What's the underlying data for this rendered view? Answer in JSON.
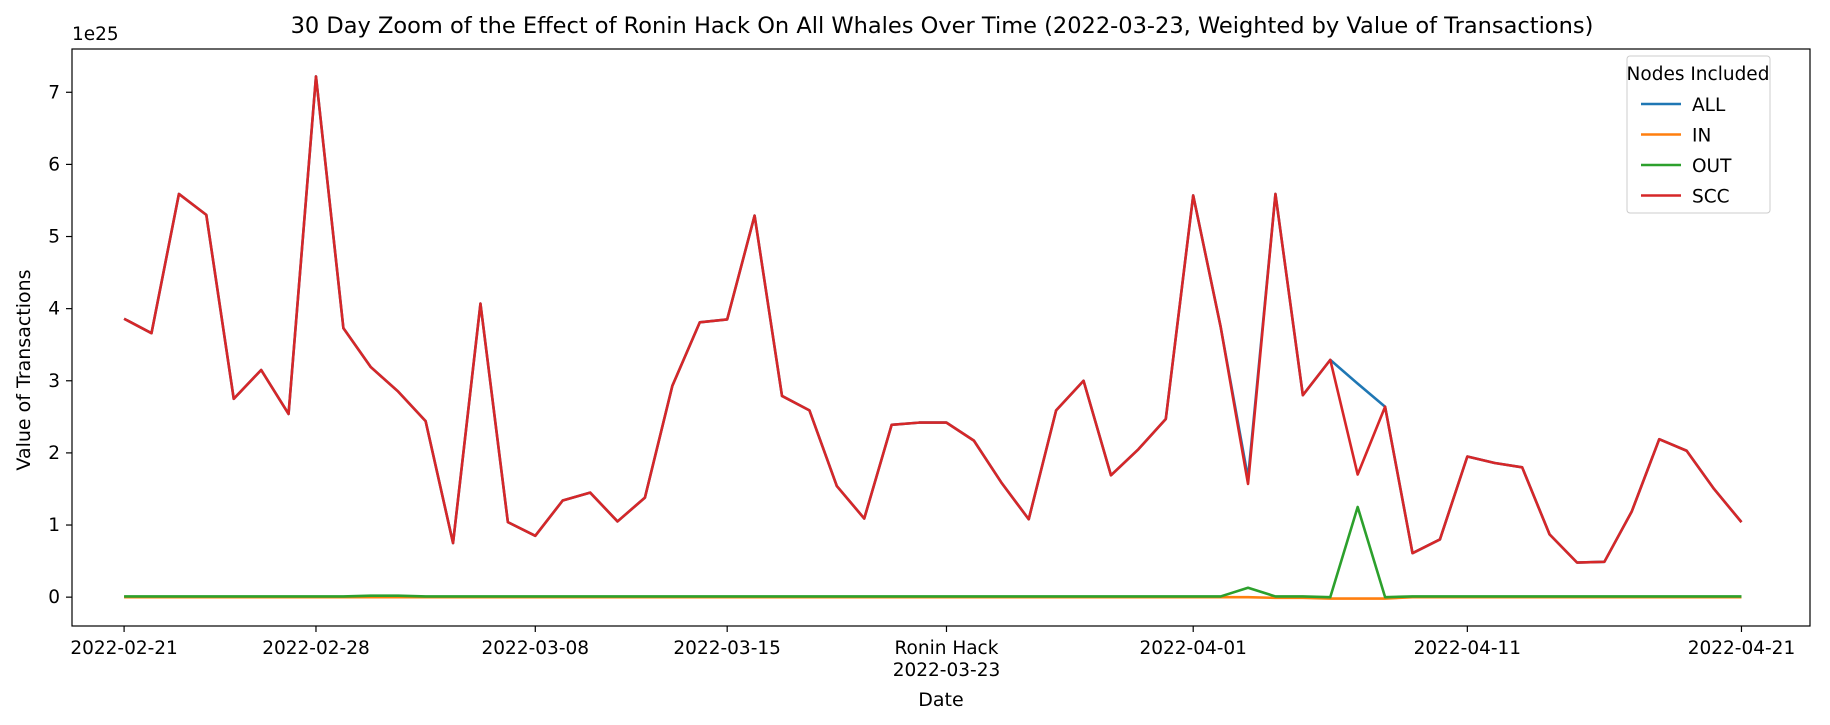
{
  "chart_data": {
    "type": "line",
    "title": "30 Day Zoom of the Effect of Ronin Hack On All Whales Over Time (2022-03-23, Weighted by Value of Transactions)",
    "xlabel": "Date",
    "ylabel": "Value of Transactions",
    "y_offset_label": "1e25",
    "ylim": [
      -0.4,
      7.6
    ],
    "y_ticks": [
      0,
      1,
      2,
      3,
      4,
      5,
      6,
      7
    ],
    "xlim": [
      "2022-02-19",
      "2022-04-24"
    ],
    "x_ticks": [
      {
        "date": "2022-02-21",
        "label": "2022-02-21"
      },
      {
        "date": "2022-02-28",
        "label": "2022-02-28"
      },
      {
        "date": "2022-03-08",
        "label": "2022-03-08"
      },
      {
        "date": "2022-03-15",
        "label": "2022-03-15"
      },
      {
        "date": "2022-03-23",
        "label": "Ronin Hack\n2022-03-23"
      },
      {
        "date": "2022-04-01",
        "label": "2022-04-01"
      },
      {
        "date": "2022-04-11",
        "label": "2022-04-11"
      },
      {
        "date": "2022-04-21",
        "label": "2022-04-21"
      }
    ],
    "x": [
      "2022-02-21",
      "2022-02-22",
      "2022-02-23",
      "2022-02-24",
      "2022-02-25",
      "2022-02-26",
      "2022-02-27",
      "2022-02-28",
      "2022-03-01",
      "2022-03-02",
      "2022-03-03",
      "2022-03-04",
      "2022-03-05",
      "2022-03-06",
      "2022-03-07",
      "2022-03-08",
      "2022-03-09",
      "2022-03-10",
      "2022-03-11",
      "2022-03-12",
      "2022-03-13",
      "2022-03-14",
      "2022-03-15",
      "2022-03-16",
      "2022-03-17",
      "2022-03-18",
      "2022-03-19",
      "2022-03-20",
      "2022-03-21",
      "2022-03-22",
      "2022-03-23",
      "2022-03-24",
      "2022-03-25",
      "2022-03-26",
      "2022-03-27",
      "2022-03-28",
      "2022-03-29",
      "2022-03-30",
      "2022-03-31",
      "2022-04-01",
      "2022-04-02",
      "2022-04-03",
      "2022-04-04",
      "2022-04-05",
      "2022-04-06",
      "2022-04-07",
      "2022-04-08",
      "2022-04-09",
      "2022-04-10",
      "2022-04-11",
      "2022-04-12",
      "2022-04-13",
      "2022-04-14",
      "2022-04-15",
      "2022-04-16",
      "2022-04-17",
      "2022-04-18",
      "2022-04-19",
      "2022-04-20",
      "2022-04-21"
    ],
    "series": [
      {
        "name": "ALL",
        "color": "#1f77b4",
        "values": [
          3.86,
          3.66,
          5.59,
          5.3,
          2.75,
          3.15,
          2.54,
          7.22,
          3.73,
          3.19,
          2.85,
          2.44,
          0.75,
          4.07,
          1.04,
          0.85,
          1.34,
          1.45,
          1.05,
          1.38,
          2.93,
          3.81,
          3.85,
          5.29,
          2.79,
          2.59,
          1.54,
          1.09,
          2.39,
          2.42,
          2.42,
          2.17,
          1.59,
          1.08,
          2.59,
          3.0,
          1.69,
          2.05,
          2.47,
          5.57,
          3.75,
          1.65,
          5.59,
          2.8,
          3.29,
          2.96,
          2.64,
          0.61,
          0.8,
          1.95,
          1.86,
          1.8,
          0.87,
          0.48,
          0.49,
          1.19,
          2.19,
          2.03,
          1.5,
          1.04
        ]
      },
      {
        "name": "IN",
        "color": "#ff7f0e",
        "values": [
          0.0,
          0.0,
          0.0,
          0.0,
          0.0,
          0.0,
          0.0,
          0.0,
          0.0,
          0.0,
          0.0,
          0.0,
          0.0,
          0.0,
          0.0,
          0.0,
          0.0,
          0.0,
          0.0,
          0.0,
          0.0,
          0.0,
          0.0,
          0.0,
          0.0,
          0.0,
          0.0,
          0.0,
          0.0,
          0.0,
          0.0,
          0.0,
          0.0,
          0.0,
          0.0,
          0.0,
          0.0,
          0.0,
          0.0,
          0.0,
          0.0,
          0.0,
          -0.01,
          -0.01,
          -0.02,
          -0.02,
          -0.02,
          0.0,
          0.0,
          0.0,
          0.0,
          0.0,
          0.0,
          0.0,
          0.0,
          0.0,
          0.0,
          0.0,
          0.0,
          0.0
        ]
      },
      {
        "name": "OUT",
        "color": "#2ca02c",
        "values": [
          0.01,
          0.01,
          0.01,
          0.01,
          0.01,
          0.01,
          0.01,
          0.01,
          0.01,
          0.02,
          0.02,
          0.01,
          0.01,
          0.01,
          0.01,
          0.01,
          0.01,
          0.01,
          0.01,
          0.01,
          0.01,
          0.01,
          0.01,
          0.01,
          0.01,
          0.01,
          0.01,
          0.01,
          0.01,
          0.01,
          0.01,
          0.01,
          0.01,
          0.01,
          0.01,
          0.01,
          0.01,
          0.01,
          0.01,
          0.01,
          0.01,
          0.13,
          0.01,
          0.01,
          0.0,
          1.25,
          0.0,
          0.01,
          0.01,
          0.01,
          0.01,
          0.01,
          0.01,
          0.01,
          0.01,
          0.01,
          0.01,
          0.01,
          0.01,
          0.01
        ]
      },
      {
        "name": "SCC",
        "color": "#d62728",
        "values": [
          3.86,
          3.66,
          5.59,
          5.3,
          2.75,
          3.15,
          2.54,
          7.22,
          3.73,
          3.19,
          2.85,
          2.44,
          0.75,
          4.07,
          1.04,
          0.85,
          1.34,
          1.45,
          1.05,
          1.38,
          2.93,
          3.81,
          3.85,
          5.29,
          2.79,
          2.59,
          1.54,
          1.09,
          2.39,
          2.42,
          2.42,
          2.17,
          1.59,
          1.08,
          2.59,
          3.0,
          1.69,
          2.05,
          2.47,
          5.57,
          3.75,
          1.57,
          5.59,
          2.8,
          3.29,
          1.7,
          2.64,
          0.61,
          0.8,
          1.95,
          1.86,
          1.8,
          0.87,
          0.48,
          0.49,
          1.19,
          2.19,
          2.03,
          1.5,
          1.04
        ]
      }
    ],
    "legend": {
      "title": "Nodes Included",
      "placement": "top-right"
    },
    "grid": false
  }
}
